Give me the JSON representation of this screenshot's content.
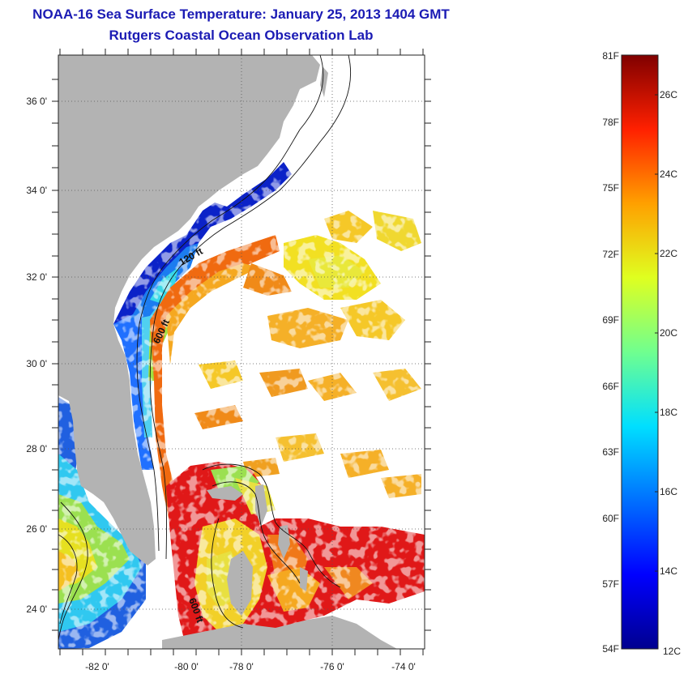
{
  "title": {
    "line1": "NOAA-16 Sea Surface Temperature:  January 25, 2013 1404 GMT",
    "line2": "Rutgers Coastal Ocean Observation Lab"
  },
  "map": {
    "lon_ticks": [
      "-82 0'",
      "-80 0'",
      "-78 0'",
      "-76 0'",
      "-74 0'"
    ],
    "lat_ticks": [
      "36 0'",
      "34 0'",
      "32 0'",
      "30 0'",
      "28 0'",
      "26 0'",
      "24 0'"
    ],
    "contour_labels": [
      "120 ft",
      "600 ft",
      "600 ft"
    ],
    "colors": {
      "land": "#b3b3b3",
      "cloud": "#ffffff",
      "cold": "#0b22c8",
      "warm": "#e01010"
    }
  },
  "colorbar": {
    "fahrenheit": [
      "81F",
      "78F",
      "75F",
      "72F",
      "69F",
      "66F",
      "63F",
      "60F",
      "57F",
      "54F"
    ],
    "celsius": [
      "26C",
      "24C",
      "22C",
      "20C",
      "18C",
      "16C",
      "14C",
      "12C"
    ]
  }
}
